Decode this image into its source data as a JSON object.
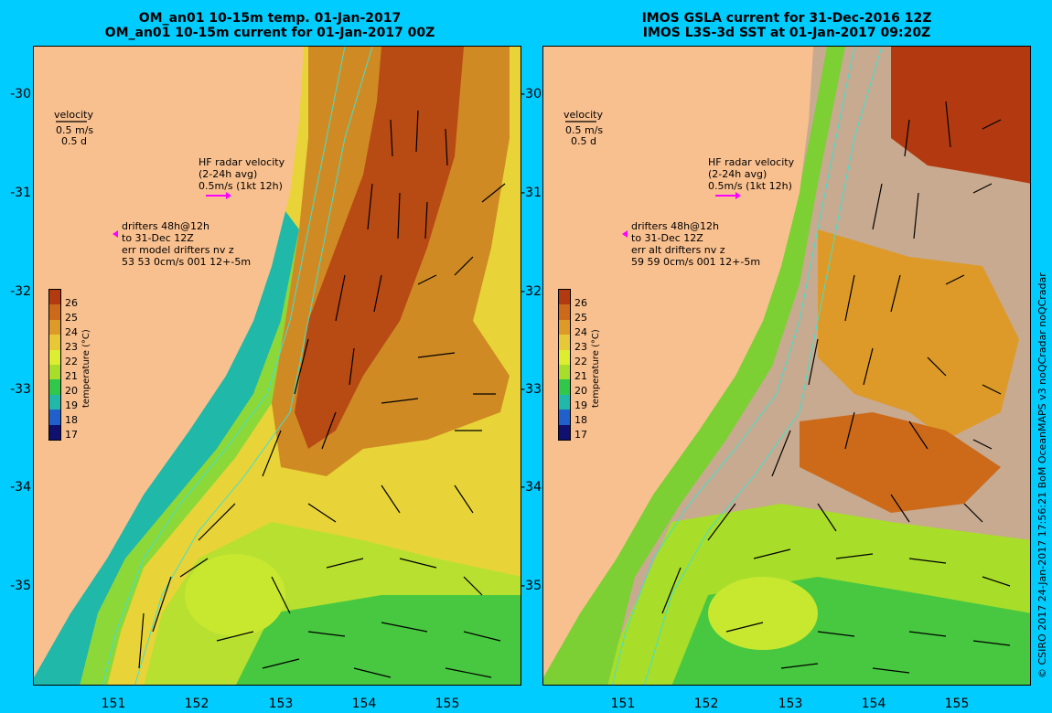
{
  "left": {
    "title_line1": "OM_an01 10-15m temp. 01-Jan-2017",
    "title_line2": "OM_an01 10-15m current for 01-Jan-2017 00Z",
    "velocity_label": "velocity",
    "velocity_scale1": "0.5 m/s",
    "velocity_scale2": "0.5 d",
    "hf_line1": "HF radar velocity",
    "hf_line2": "(2-24h avg)",
    "hf_line3": "0.5m/s (1kt 12h)",
    "drifter_line1": "drifters 48h@12h",
    "drifter_line2": "to 31-Dec 12Z",
    "drifter_line3": "err model drifters nv z",
    "drifter_line4": "53 53 0cm/s 001 12+-5m"
  },
  "right": {
    "title_line1": "IMOS GSLA current for 31-Dec-2016 12Z",
    "title_line2": "IMOS L3S-3d SST at 01-Jan-2017 09:20Z",
    "velocity_label": "velocity",
    "velocity_scale1": "0.5 m/s",
    "velocity_scale2": "0.5 d",
    "hf_line1": "HF radar velocity",
    "hf_line2": "(2-24h avg)",
    "hf_line3": "0.5m/s (1kt 12h)",
    "drifter_line1": "drifters 48h@12h",
    "drifter_line2": "to 31-Dec 12Z",
    "drifter_line3": "err alt drifters nv z",
    "drifter_line4": "59 59 0cm/s 001 12+-5m"
  },
  "colorbar": {
    "title": "temperature (°C)",
    "labels": [
      "26",
      "25",
      "24",
      "23",
      "22",
      "21",
      "20",
      "19",
      "18",
      "17"
    ],
    "colors": [
      "#b33a10",
      "#cc6a1a",
      "#dd9a28",
      "#e8c836",
      "#ddee30",
      "#a8dd2a",
      "#30c84a",
      "#20b8a8",
      "#2060cc",
      "#101070"
    ]
  },
  "axes": {
    "y_ticks": [
      "-30",
      "-31",
      "-32",
      "-33",
      "-34",
      "-35"
    ],
    "x_ticks": [
      "151",
      "152",
      "153",
      "154",
      "155"
    ]
  },
  "credit": "© CSIRO 2017   24-Jan-2017 17:56:21 BoM OceanMAPS v3 noQCradar noQCradar",
  "colors": {
    "background": "#00ccff",
    "land": "#f9c08f",
    "hf_radar_arrow": "#ff00ff",
    "isobath": "#40e0d0",
    "cloud_mask": "#c8aa90"
  }
}
